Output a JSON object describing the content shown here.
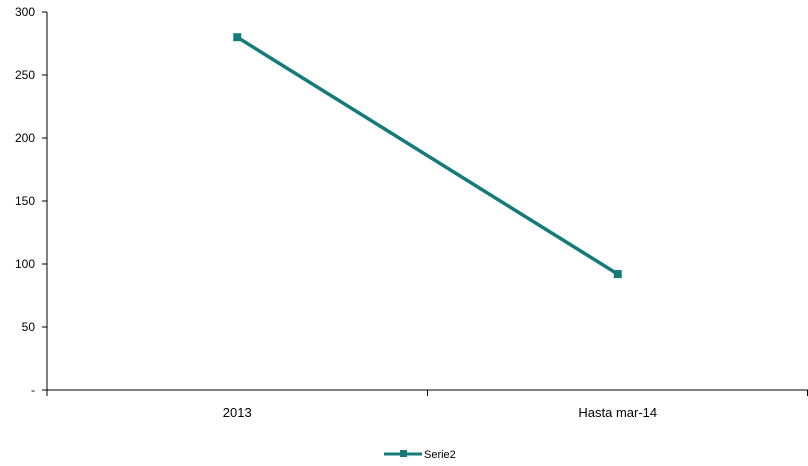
{
  "chart_data": {
    "type": "line",
    "categories": [
      "2013",
      "Hasta mar-14"
    ],
    "series": [
      {
        "name": "Serie2",
        "values": [
          280,
          92
        ],
        "color": "#147b7a"
      }
    ],
    "ylim": [
      0,
      300
    ],
    "yticks": [
      0,
      50,
      100,
      150,
      200,
      250,
      300
    ],
    "ytick_labels": [
      "-",
      "50",
      "100",
      "150",
      "200",
      "250",
      "300"
    ],
    "marker": "square",
    "grid": false,
    "legend_position": "bottom"
  }
}
